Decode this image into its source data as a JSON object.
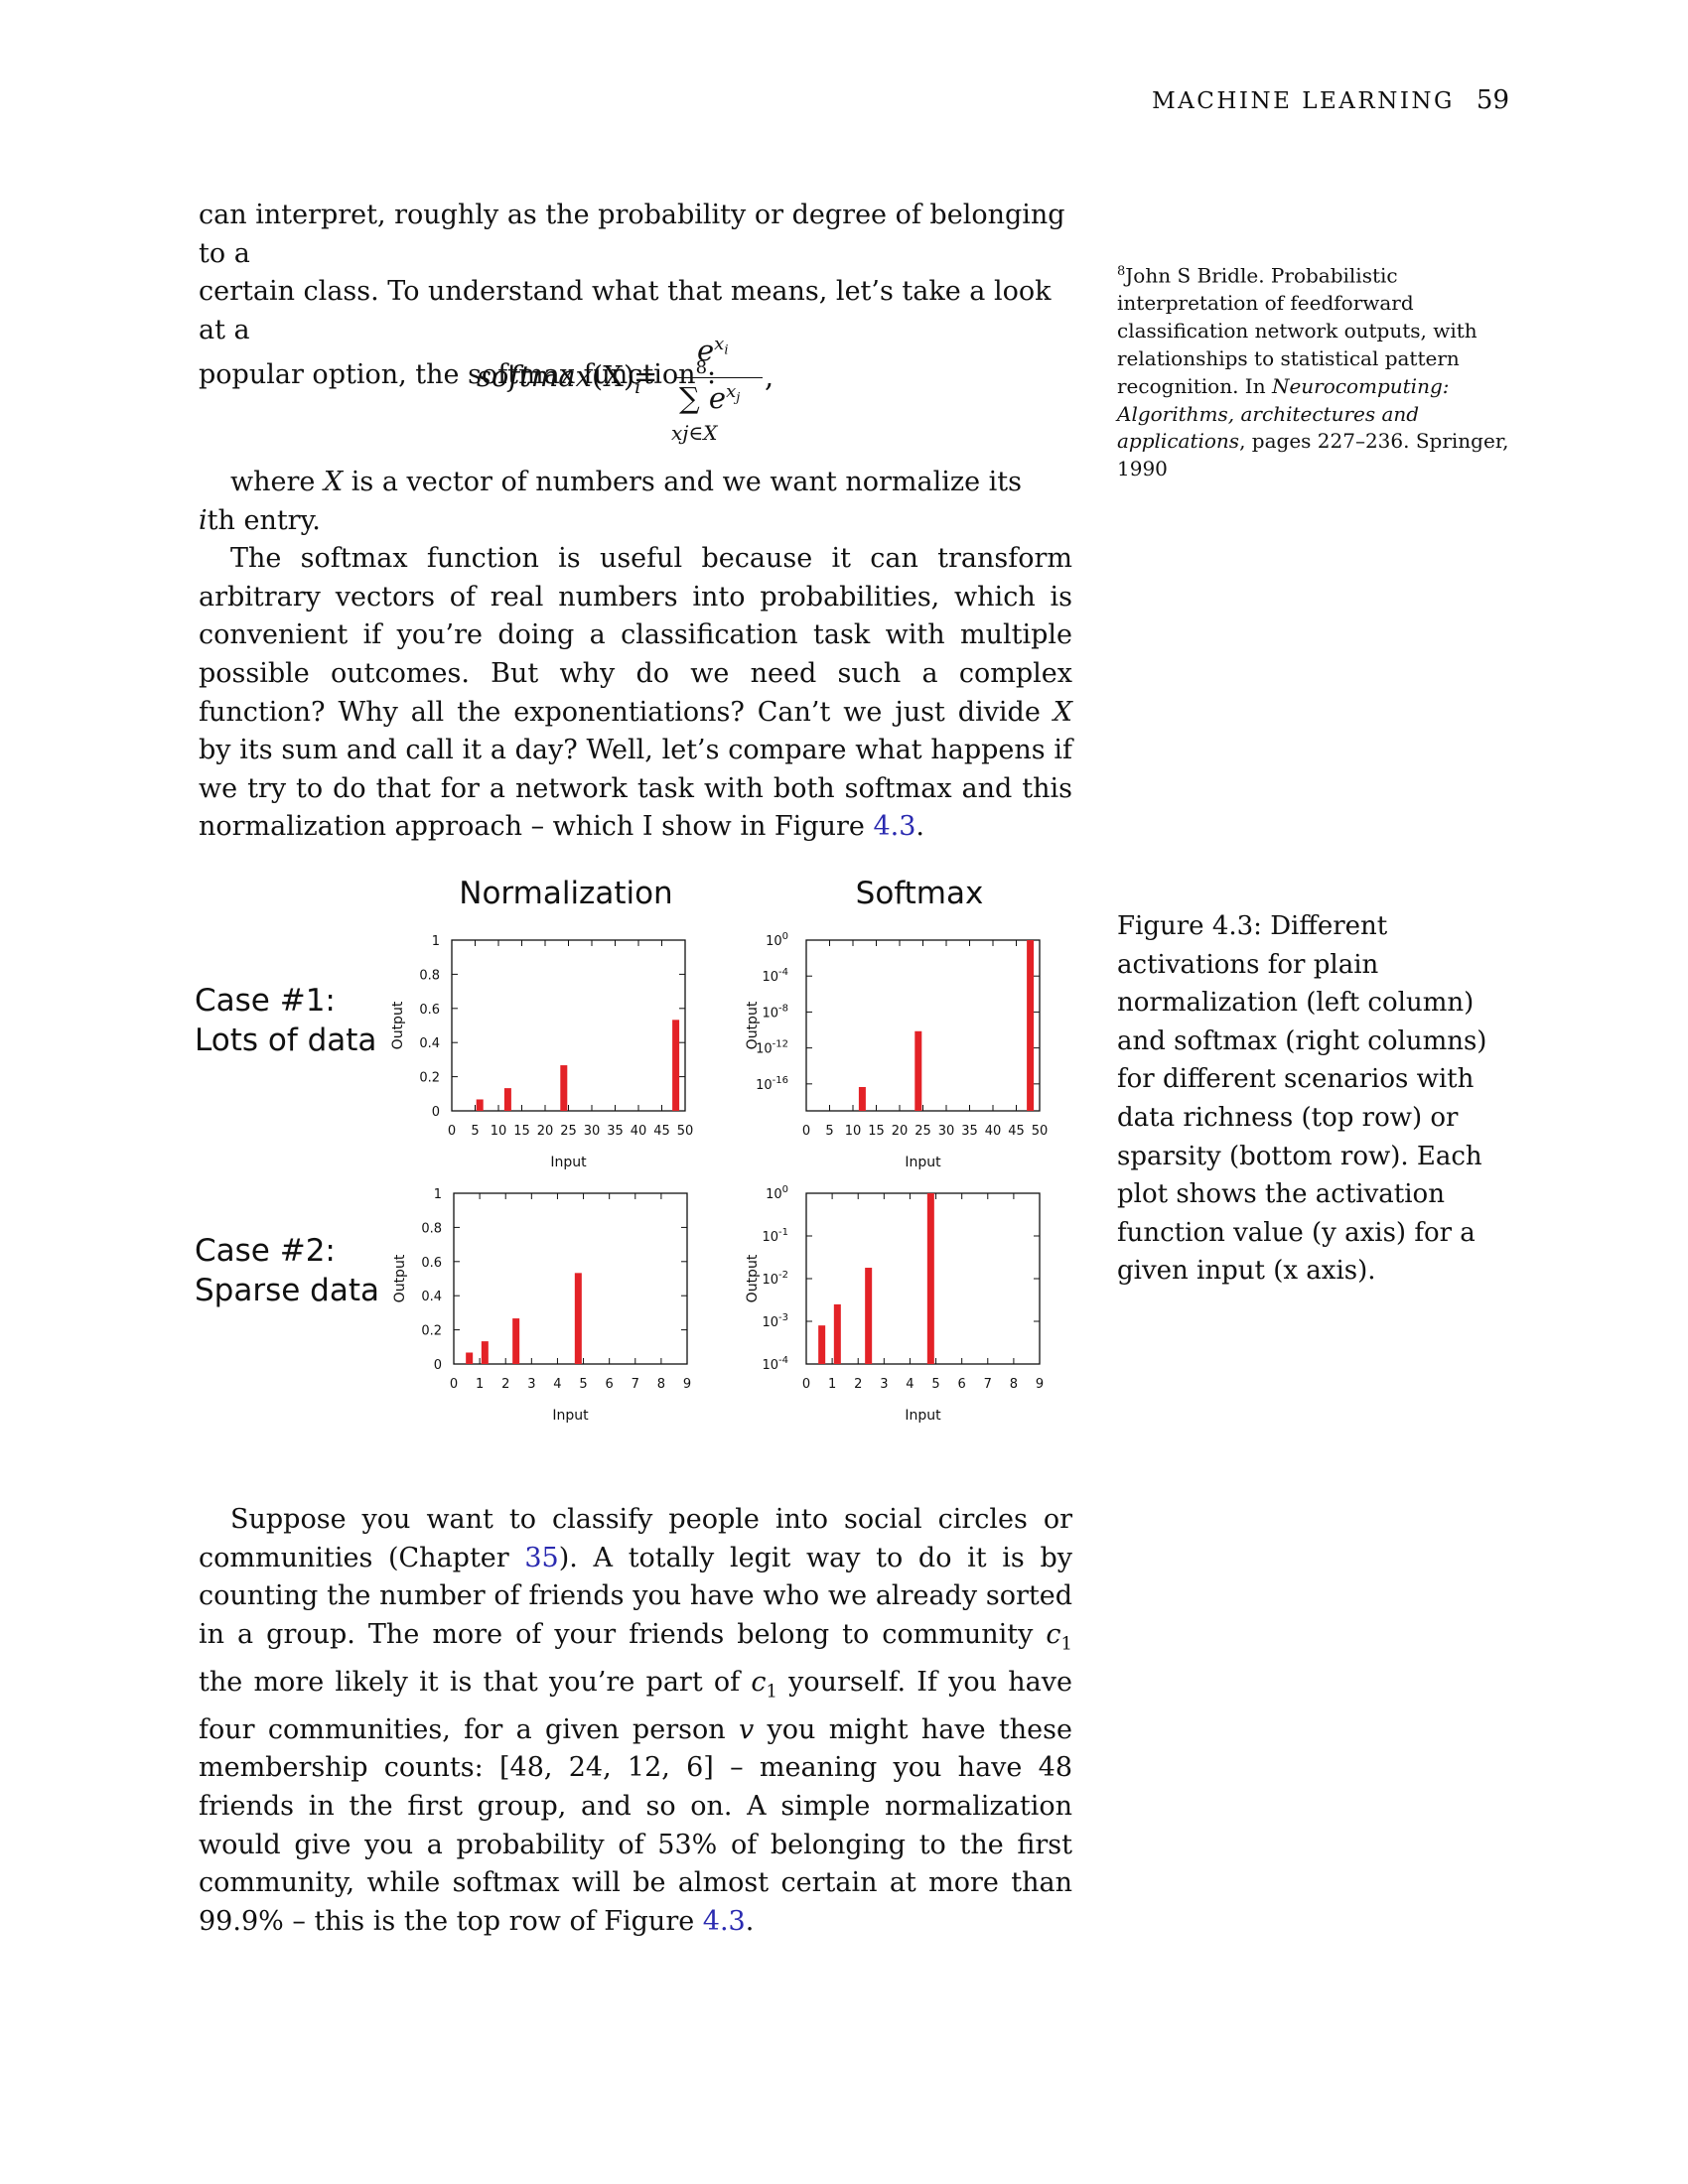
{
  "header": {
    "running_title": "MACHINE LEARNING",
    "page_number": "59"
  },
  "intro": {
    "line1": "can interpret, roughly as the probability or degree of belonging to a",
    "line2": "certain class. To understand what that means, let’s take a look at a",
    "line3": "popular option, the softmax function",
    "footnote_mark": "8",
    "line3_end": ":"
  },
  "equation": {
    "lhs_name": "softmax",
    "lhs_arg": "(X)",
    "lhs_sub": "i",
    "equals": "=",
    "num_base": "e",
    "num_sup": "x",
    "num_sup_sub": "i",
    "den_sigma": "∑",
    "den_base": "e",
    "den_sup": "x",
    "den_sup_sub": "j",
    "den_limits": "xj∈X",
    "comma": ","
  },
  "para1": {
    "text_a": "where ",
    "var": "X",
    "text_b": " is a vector of numbers and we want normalize its ",
    "i": "i",
    "text_c": "th entry."
  },
  "para2": {
    "text_a": "The softmax function is useful because it can transform arbitrary vectors of real numbers into probabilities, which is convenient if you’re doing a classification task with multiple possible outcomes. But why do we need such a complex function? Why all the exponentiations? Can’t we just divide ",
    "var": "X",
    "text_b": " by its sum and call it a day? Well, let’s compare what happens if we try to do that for a network task with both softmax and this normalization approach – which I show in Figure ",
    "fig_ref": "4.3",
    "end": "."
  },
  "sidenote": {
    "num": "8",
    "text_a": "John S Bridle. Probabilistic interpretation of feedforward classification network outputs, with relationships to statistical pattern recognition. In ",
    "italic": "Neurocomputing: Algorithms, architectures and applications",
    "text_b": ", pages 227–236. Springer, 1990"
  },
  "caption": "Figure 4.3: Different activations for plain normalization (left column) and softmax (right columns) for different scenarios with data richness (top row) or sparsity (bottom row). Each plot shows the activation function value (y axis) for a given input (x axis).",
  "figure": {
    "col_titles": [
      "Normalization",
      "Softmax"
    ],
    "row_labels": [
      [
        "Case #1:",
        "Lots of data"
      ],
      [
        "Case #2:",
        "Sparse data"
      ]
    ],
    "bar_color": "#e32227"
  },
  "chart_data": [
    {
      "type": "bar",
      "title": "Normalization",
      "row": "Case #1: Lots of data",
      "xlabel": "Input",
      "ylabel": "Output",
      "x": [
        6,
        12,
        24,
        48
      ],
      "values": [
        0.067,
        0.133,
        0.267,
        0.533
      ],
      "xlim": [
        0,
        50
      ],
      "ylim": [
        0,
        1
      ],
      "yscale": "linear",
      "xticks": [
        "0",
        "5",
        "10",
        "15",
        "20",
        "25",
        "30",
        "35",
        "40",
        "45",
        "50"
      ],
      "yticks": [
        "0",
        "0.2",
        "0.4",
        "0.6",
        "0.8",
        "1"
      ]
    },
    {
      "type": "bar",
      "title": "Softmax",
      "row": "Case #1: Lots of data",
      "xlabel": "Input",
      "ylabel": "Output",
      "x": [
        6,
        12,
        24,
        48
      ],
      "values": [
        1e-19,
        4.5e-17,
        7.3e-11,
        1
      ],
      "xlim": [
        0,
        50
      ],
      "ylim": [
        1e-19,
        1
      ],
      "yscale": "log",
      "xticks": [
        "0",
        "5",
        "10",
        "15",
        "20",
        "25",
        "30",
        "35",
        "40",
        "45",
        "50"
      ],
      "yticks": [
        "10^0",
        "10^-4",
        "10^-8",
        "10^-12",
        "10^-16"
      ]
    },
    {
      "type": "bar",
      "title": "Normalization",
      "row": "Case #2: Sparse data",
      "xlabel": "Input",
      "ylabel": "Output",
      "x": [
        0.6,
        1.2,
        2.4,
        4.8
      ],
      "values": [
        0.067,
        0.133,
        0.267,
        0.533
      ],
      "xlim": [
        0,
        9
      ],
      "ylim": [
        0,
        1
      ],
      "yscale": "linear",
      "xticks": [
        "0",
        "1",
        "2",
        "3",
        "4",
        "5",
        "6",
        "7",
        "8",
        "9"
      ],
      "yticks": [
        "0",
        "0.2",
        "0.4",
        "0.6",
        "0.8",
        "1"
      ]
    },
    {
      "type": "bar",
      "title": "Softmax",
      "row": "Case #2: Sparse data",
      "xlabel": "Input",
      "ylabel": "Output",
      "x": [
        0.6,
        1.2,
        2.4,
        4.8
      ],
      "values": [
        0.0008,
        0.0025,
        0.018,
        1
      ],
      "xlim": [
        0,
        9
      ],
      "ylim": [
        0.0001,
        1
      ],
      "yscale": "log",
      "xticks": [
        "0",
        "1",
        "2",
        "3",
        "4",
        "5",
        "6",
        "7",
        "8",
        "9"
      ],
      "yticks": [
        "10^0",
        "10^-1",
        "10^-2",
        "10^-3",
        "10^-4"
      ]
    }
  ],
  "para3": {
    "text_a": "Suppose you want to classify people into social circles or communities (Chapter ",
    "chapter_ref": "35",
    "text_b": "). A totally legit way to do it is by counting the number of friends you have who we already sorted in a group. The more of your friends belong to community ",
    "c1a_base": "c",
    "c1a_sub": "1",
    "text_c": " the more likely it is that you’re part of ",
    "c1b_base": "c",
    "c1b_sub": "1",
    "text_d": " yourself. If you have four communities, for a given person ",
    "v": "v",
    "text_e": " you might have these membership counts: ",
    "counts": "[48, 24, 12, 6]",
    "text_f": " – meaning you have 48 friends in the first group, and so on. A simple normalization would give you a probability of 53% of belonging to the first community, while softmax will be almost certain at more than 99.9% – this is the top row of Figure ",
    "fig_ref": "4.3",
    "end": "."
  }
}
